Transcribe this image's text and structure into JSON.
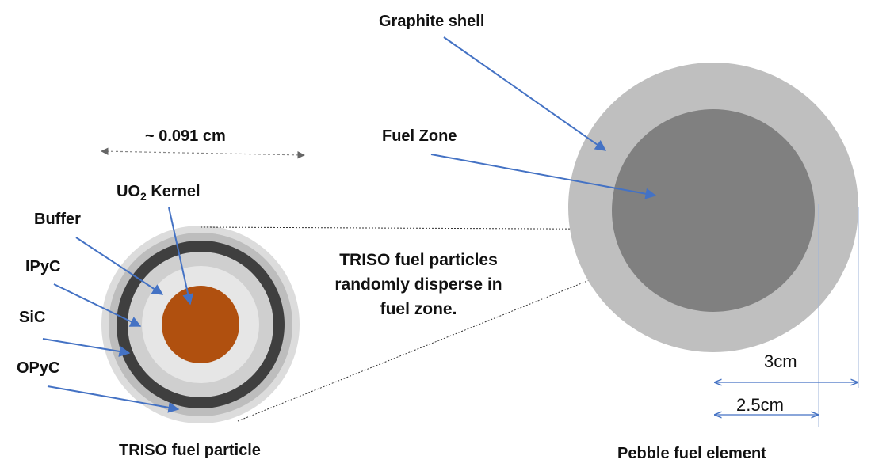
{
  "labels": {
    "graphite_shell": "Graphite shell",
    "fuel_zone": "Fuel Zone",
    "kernel_main": "UO",
    "kernel_sub": "2",
    "kernel_tail": " Kernel",
    "buffer": "Buffer",
    "ipyc": "IPyC",
    "sic": "SiC",
    "opyc": "OPyC",
    "particle_size": "~ 0.091 cm",
    "triso_line1": "TRISO fuel particles",
    "triso_line2": "randomly disperse in",
    "triso_line3": "fuel zone.",
    "triso_particle": "TRISO fuel particle",
    "pebble_element": "Pebble fuel element",
    "radius_outer": "3cm",
    "radius_inner": "2.5cm"
  },
  "colors": {
    "arrow_blue": "#4472c4",
    "kernel": "#b0500f",
    "buffer": "#e6e6e6",
    "ipyc": "#cfcfcf",
    "sic": "#3f3f3f",
    "opyc_outer": "#bdbdbd",
    "graphite_shell": "#bfbfbf",
    "fuel_zone": "#808080"
  }
}
